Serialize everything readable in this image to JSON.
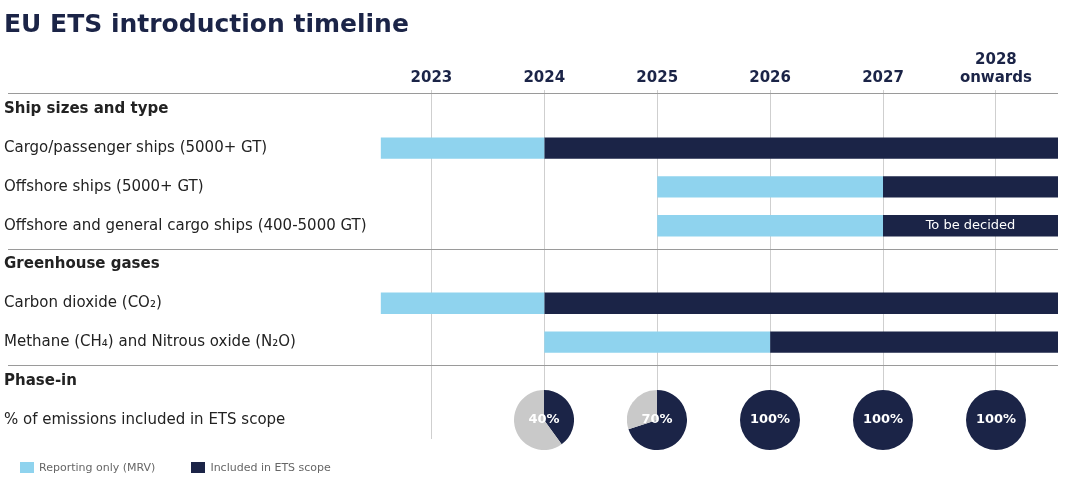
{
  "chart_data": [
    {
      "type": "bar",
      "orientation": "horizontal",
      "title": "EU ETS introduction timeline",
      "categories": [
        "Ship sizes and type",
        "Cargo/passenger ships (5000+ GT)",
        "Offshore ships (5000+ GT)",
        "Offshore and general cargo ships (400-5000 GT)",
        "Greenhouse gases",
        "Carbon dioxide (CO₂)",
        "Methane (CH₄) and Nitrous oxide (N₂O)",
        "Phase-in",
        "% of emissions included in ETS scope"
      ],
      "series": [
        {
          "name": "Reporting only (MRV)",
          "color": "#8fd3ee",
          "base": [
            null,
            2022.55,
            2025,
            2025,
            null,
            2022.55,
            2024,
            null,
            null
          ],
          "values": [
            null,
            1.45,
            2,
            2,
            null,
            1.45,
            2,
            null,
            null
          ]
        },
        {
          "name": "Included in ETS scope",
          "color": "#1b2447",
          "base": [
            null,
            2024,
            2027,
            2027,
            null,
            2024,
            2026,
            null,
            null
          ],
          "values": [
            null,
            4.55,
            1.55,
            1.55,
            null,
            4.55,
            2.55,
            null,
            null
          ],
          "value_labels": [
            null,
            null,
            null,
            "To be decided",
            null,
            null,
            null,
            null,
            null
          ]
        }
      ],
      "xlim": [
        2022.55,
        2028.55
      ],
      "xticks": [
        2023,
        2024,
        2025,
        2026,
        2027,
        {
          "value": 2028,
          "label": "2028 onwards"
        }
      ],
      "grid": "x",
      "legend": "bottom left"
    },
    {
      "type": "pie",
      "categories": [
        null,
        null
      ],
      "values": [
        40,
        60
      ],
      "colors": [
        "#1b2447",
        "#c9c9c9"
      ],
      "value_labels": [
        "40%",
        null
      ]
    },
    {
      "type": "pie",
      "categories": [
        null,
        null
      ],
      "values": [
        70,
        30
      ],
      "colors": [
        "#1b2447",
        "#c9c9c9"
      ],
      "value_labels": [
        "70%",
        null
      ]
    },
    {
      "type": "pie",
      "categories": [
        null
      ],
      "values": [
        100
      ],
      "colors": [
        "#1b2447"
      ],
      "value_labels": [
        "100%"
      ]
    },
    {
      "type": "pie",
      "categories": [
        null
      ],
      "values": [
        100
      ],
      "colors": [
        "#1b2447"
      ],
      "value_labels": [
        "100%"
      ]
    },
    {
      "type": "pie",
      "categories": [
        null
      ],
      "values": [
        100
      ],
      "colors": [
        "#1b2447"
      ],
      "value_labels": [
        "100%"
      ]
    }
  ]
}
